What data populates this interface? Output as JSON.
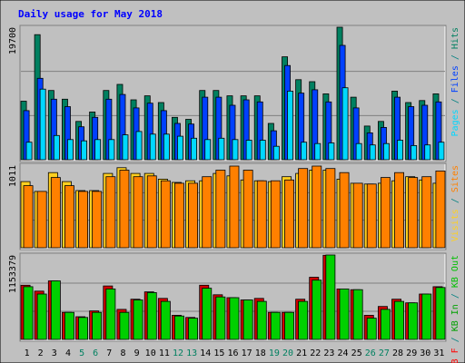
{
  "chart_data": {
    "type": "bar",
    "title": "Daily usage for May 2018",
    "x_labels": [
      "1",
      "2",
      "3",
      "4",
      "5",
      "6",
      "7",
      "8",
      "9",
      "10",
      "11",
      "12",
      "13",
      "14",
      "15",
      "16",
      "17",
      "18",
      "19",
      "20",
      "21",
      "22",
      "23",
      "24",
      "25",
      "26",
      "27",
      "28",
      "29",
      "30",
      "31"
    ],
    "weekend_days": [
      "5",
      "6",
      "12",
      "13",
      "19",
      "20",
      "26",
      "27"
    ],
    "background_color": "#c0c0c0",
    "panels": [
      {
        "name": "pages-files-hits",
        "scale_label": "19700",
        "ymax": 19700,
        "legend": [
          {
            "text": "Pages",
            "color": "#00d8ff"
          },
          {
            "text": " / ",
            "color": "#008080"
          },
          {
            "text": "Files",
            "color": "#0040ff"
          },
          {
            "text": " / ",
            "color": "#008080"
          },
          {
            "text": "Hits",
            "color": "#008060"
          }
        ],
        "series": [
          {
            "key": "hits",
            "color": "#008060",
            "values": [
              8700,
              18600,
              10300,
              9000,
              5700,
              7100,
              10300,
              11200,
              8900,
              9500,
              8500,
              6300,
              6000,
              10300,
              10300,
              9500,
              9500,
              9500,
              5400,
              15300,
              11900,
              11600,
              9800,
              19700,
              9300,
              5000,
              5700,
              10200,
              8500,
              8800,
              9800
            ]
          },
          {
            "key": "files",
            "color": "#0040ff",
            "values": [
              7300,
              12100,
              9000,
              7900,
              4900,
              6300,
              9000,
              9700,
              7700,
              8400,
              7300,
              5400,
              5300,
              9300,
              9300,
              8100,
              8900,
              8600,
              4300,
              14000,
              9900,
              10400,
              8600,
              17000,
              7700,
              4000,
              4800,
              9300,
              7900,
              8100,
              8600
            ]
          },
          {
            "key": "pages",
            "color": "#00d8ff",
            "values": [
              2600,
              10500,
              3600,
              3000,
              2800,
              3000,
              3000,
              3700,
              4200,
              3800,
              3800,
              3500,
              3200,
              3000,
              3200,
              3000,
              2900,
              2900,
              2000,
              10200,
              2600,
              2400,
              2500,
              10700,
              2400,
              2200,
              2400,
              2900,
              2100,
              2200,
              2600
            ]
          }
        ]
      },
      {
        "name": "visits-sites",
        "scale_label": "1011",
        "ymax": 1011,
        "legend": [
          {
            "text": "Visits",
            "color": "#ffd020"
          },
          {
            "text": " / ",
            "color": "#008080"
          },
          {
            "text": "Sites",
            "color": "#ff8000"
          }
        ],
        "series": [
          {
            "key": "visits",
            "color": "#ffd020",
            "values": [
              810,
              690,
              920,
              810,
              700,
              700,
              910,
              980,
              910,
              910,
              840,
              800,
              820,
              820,
              910,
              880,
              830,
              820,
              810,
              870,
              910,
              950,
              950,
              840,
              790,
              780,
              790,
              820,
              870,
              830,
              790
            ]
          },
          {
            "key": "sites",
            "color": "#ff8000",
            "values": [
              760,
              690,
              860,
              760,
              690,
              690,
              870,
              950,
              870,
              880,
              820,
              790,
              790,
              870,
              950,
              1000,
              950,
              820,
              820,
              830,
              970,
              1000,
              970,
              920,
              790,
              780,
              860,
              920,
              860,
              870,
              940
            ]
          }
        ]
      },
      {
        "name": "kb-in-out",
        "scale_label": "1153379",
        "ymax": 1153379,
        "legend": [
          {
            "text": "KB F",
            "color": "#ff0000"
          },
          {
            "text": " / ",
            "color": "#008080"
          },
          {
            "text": "KB In",
            "color": "#00a000"
          },
          {
            "text": " / ",
            "color": "#008080"
          },
          {
            "text": "KB Out",
            "color": "#00c000"
          }
        ],
        "series": [
          {
            "key": "kb_f",
            "color": "#d00000",
            "values": [
              740000,
              660000,
              800000,
              370000,
              310000,
              390000,
              730000,
              410000,
              550000,
              650000,
              560000,
              330000,
              300000,
              740000,
              610000,
              570000,
              540000,
              560000,
              370000,
              370000,
              550000,
              850000,
              1150000,
              690000,
              680000,
              330000,
              450000,
              550000,
              500000,
              620000,
              720000
            ]
          },
          {
            "key": "kb_out",
            "color": "#00d000",
            "values": [
              720000,
              620000,
              800000,
              370000,
              300000,
              370000,
              690000,
              370000,
              540000,
              640000,
              520000,
              320000,
              290000,
              700000,
              580000,
              570000,
              540000,
              520000,
              370000,
              370000,
              520000,
              810000,
              1153379,
              690000,
              680000,
              290000,
              410000,
              520000,
              500000,
              620000,
              710000
            ]
          }
        ]
      }
    ]
  }
}
